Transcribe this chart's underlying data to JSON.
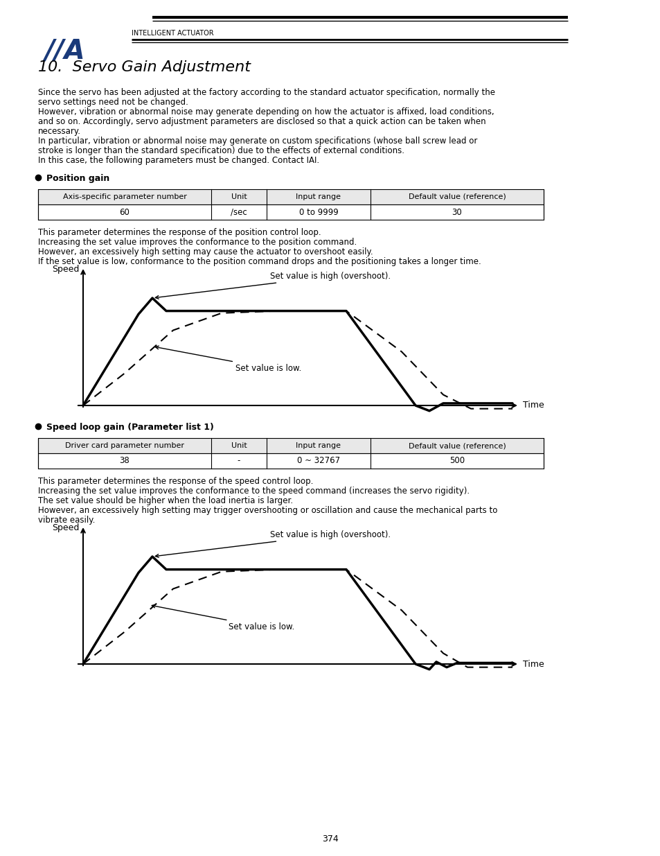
{
  "title": "10.  Servo Gain Adjustment",
  "bg_color": "#ffffff",
  "text_color": "#000000",
  "logo_color": "#1a3a7a",
  "intro_paragraphs": [
    "Since the servo has been adjusted at the factory according to the standard actuator specification, normally the\nservo settings need not be changed.",
    "However, vibration or abnormal noise may generate depending on how the actuator is affixed, load conditions,\nand so on. Accordingly, servo adjustment parameters are disclosed so that a quick action can be taken when\nnecessary.",
    "In particular, vibration or abnormal noise may generate on custom specifications (whose ball screw lead or\nstroke is longer than the standard specification) due to the effects of external conditions.",
    "In this case, the following parameters must be changed. Contact IAI."
  ],
  "section1_label": "Position gain",
  "table1_headers": [
    "Axis-specific parameter number",
    "Unit",
    "Input range",
    "Default value (reference)"
  ],
  "table1_row": [
    "60",
    "/sec",
    "0 to 9999",
    "30"
  ],
  "section1_desc": [
    "This parameter determines the response of the position control loop.",
    "Increasing the set value improves the conformance to the position command.",
    "However, an excessively high setting may cause the actuator to overshoot easily.",
    "If the set value is low, conformance to the position command drops and the positioning takes a longer time."
  ],
  "chart1_xlabel": "Time",
  "chart1_ylabel": "Speed",
  "chart1_annotation_high": "Set value is high (overshoot).",
  "chart1_annotation_low": "Set value is low.",
  "section2_label": "Speed loop gain (Parameter list 1)",
  "table2_headers": [
    "Driver card parameter number",
    "Unit",
    "Input range",
    "Default value (reference)"
  ],
  "table2_row": [
    "38",
    "-",
    "0 ~ 32767",
    "500"
  ],
  "section2_desc": [
    "This parameter determines the response of the speed control loop.",
    "Increasing the set value improves the conformance to the speed command (increases the servo rigidity).",
    "The set value should be higher when the load inertia is larger.",
    "However, an excessively high setting may trigger overshooting or oscillation and cause the mechanical parts to\nvibrate easily."
  ],
  "chart2_xlabel": "Time",
  "chart2_ylabel": "Speed",
  "chart2_annotation_high": "Set value is high (overshoot).",
  "chart2_annotation_low": "Set value is low.",
  "page_number": "374"
}
